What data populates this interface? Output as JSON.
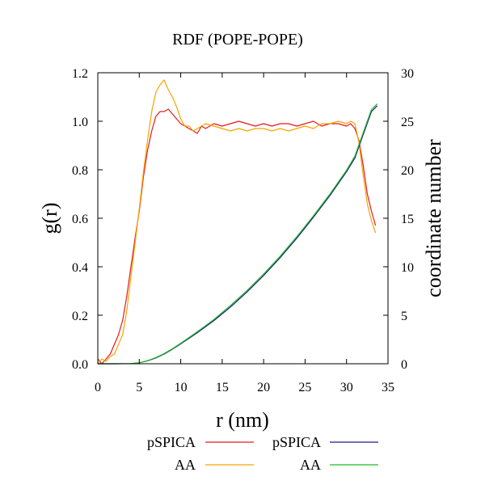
{
  "chart_data": {
    "type": "line",
    "title": "RDF (POPE-POPE)",
    "xlabel": "r (nm)",
    "ylabel": "g(r)",
    "y2label": "coordinate number",
    "xlim": [
      0,
      35
    ],
    "ylim": [
      0,
      1.2
    ],
    "y2lim": [
      0,
      30
    ],
    "xticks": [
      "0",
      "5",
      "10",
      "15",
      "20",
      "25",
      "30",
      "35"
    ],
    "yticks": [
      "0.0",
      "0.2",
      "0.4",
      "0.6",
      "0.8",
      "1.0",
      "1.2"
    ],
    "y2ticks": [
      "0",
      "5",
      "10",
      "15",
      "20",
      "25",
      "30"
    ],
    "grid": false,
    "legend_position": "bottom",
    "series": [
      {
        "name": "pSPICA",
        "axis": "left",
        "color": "#e41a1c",
        "x": [
          0,
          0.5,
          1,
          1.5,
          2,
          2.5,
          3,
          3.5,
          4,
          4.5,
          5,
          5.5,
          6,
          6.5,
          7,
          7.5,
          8,
          8.5,
          9,
          9.5,
          10,
          10.5,
          11,
          11.5,
          12,
          12.5,
          13,
          14,
          15,
          16,
          17,
          18,
          19,
          20,
          21,
          22,
          23,
          24,
          25,
          26,
          27,
          28,
          29,
          30,
          30.5,
          31,
          31.5,
          32,
          32.5,
          33,
          33.5
        ],
        "y": [
          0.02,
          0.0,
          0.02,
          0.04,
          0.08,
          0.12,
          0.18,
          0.28,
          0.4,
          0.52,
          0.63,
          0.77,
          0.88,
          0.96,
          1.02,
          1.04,
          1.04,
          1.05,
          1.03,
          1.01,
          0.99,
          0.98,
          0.97,
          0.96,
          0.95,
          0.98,
          0.97,
          0.99,
          0.98,
          0.99,
          1.0,
          0.99,
          0.98,
          0.99,
          0.98,
          0.99,
          0.99,
          0.98,
          0.99,
          1.0,
          0.98,
          0.99,
          0.99,
          0.98,
          0.99,
          0.97,
          0.92,
          0.82,
          0.7,
          0.63,
          0.57
        ]
      },
      {
        "name": "AA",
        "axis": "left",
        "color": "#f5a300",
        "x": [
          0,
          0.5,
          1,
          1.5,
          2,
          2.5,
          3,
          3.5,
          4,
          4.5,
          5,
          5.5,
          6,
          6.5,
          7,
          7.5,
          8,
          8.5,
          9,
          9.5,
          10,
          10.5,
          11,
          11.5,
          12,
          12.5,
          13,
          14,
          15,
          16,
          17,
          18,
          19,
          20,
          21,
          22,
          23,
          24,
          25,
          26,
          27,
          28,
          29,
          30,
          30.5,
          31,
          31.5,
          32,
          32.5,
          33,
          33.5
        ],
        "y": [
          0.0,
          0.02,
          0.01,
          0.03,
          0.04,
          0.08,
          0.12,
          0.22,
          0.36,
          0.5,
          0.64,
          0.79,
          0.92,
          1.04,
          1.12,
          1.15,
          1.17,
          1.13,
          1.1,
          1.06,
          1.01,
          0.98,
          0.98,
          0.96,
          0.97,
          0.98,
          0.99,
          0.98,
          0.97,
          0.96,
          0.97,
          0.96,
          0.97,
          0.97,
          0.96,
          0.97,
          0.96,
          0.97,
          0.98,
          0.97,
          0.99,
          0.99,
          1.0,
          0.99,
          1.0,
          0.99,
          0.91,
          0.78,
          0.66,
          0.59,
          0.54
        ]
      },
      {
        "name": "pSPICA",
        "axis": "right",
        "color": "#1a1a8c",
        "x": [
          0,
          2,
          4,
          5,
          6,
          7,
          8,
          9,
          10,
          12,
          14,
          16,
          18,
          20,
          22,
          24,
          26,
          28,
          30,
          31,
          32,
          33,
          33.7
        ],
        "y": [
          0,
          0,
          0.02,
          0.1,
          0.3,
          0.6,
          1.0,
          1.5,
          2.05,
          3.2,
          4.45,
          5.85,
          7.4,
          9.1,
          10.95,
          12.95,
          15.1,
          17.35,
          19.8,
          21.2,
          23.6,
          26.0,
          26.6
        ]
      },
      {
        "name": "AA",
        "axis": "right",
        "color": "#22bb22",
        "x": [
          0,
          2,
          4,
          5,
          6,
          7,
          8,
          9,
          10,
          12,
          14,
          16,
          18,
          20,
          22,
          24,
          26,
          28,
          30,
          31,
          32,
          33,
          33.7
        ],
        "y": [
          0,
          0,
          0.02,
          0.1,
          0.32,
          0.64,
          1.05,
          1.55,
          2.12,
          3.3,
          4.57,
          6.0,
          7.55,
          9.25,
          11.1,
          13.1,
          15.25,
          17.5,
          19.95,
          21.4,
          23.8,
          26.2,
          26.8
        ]
      }
    ]
  }
}
